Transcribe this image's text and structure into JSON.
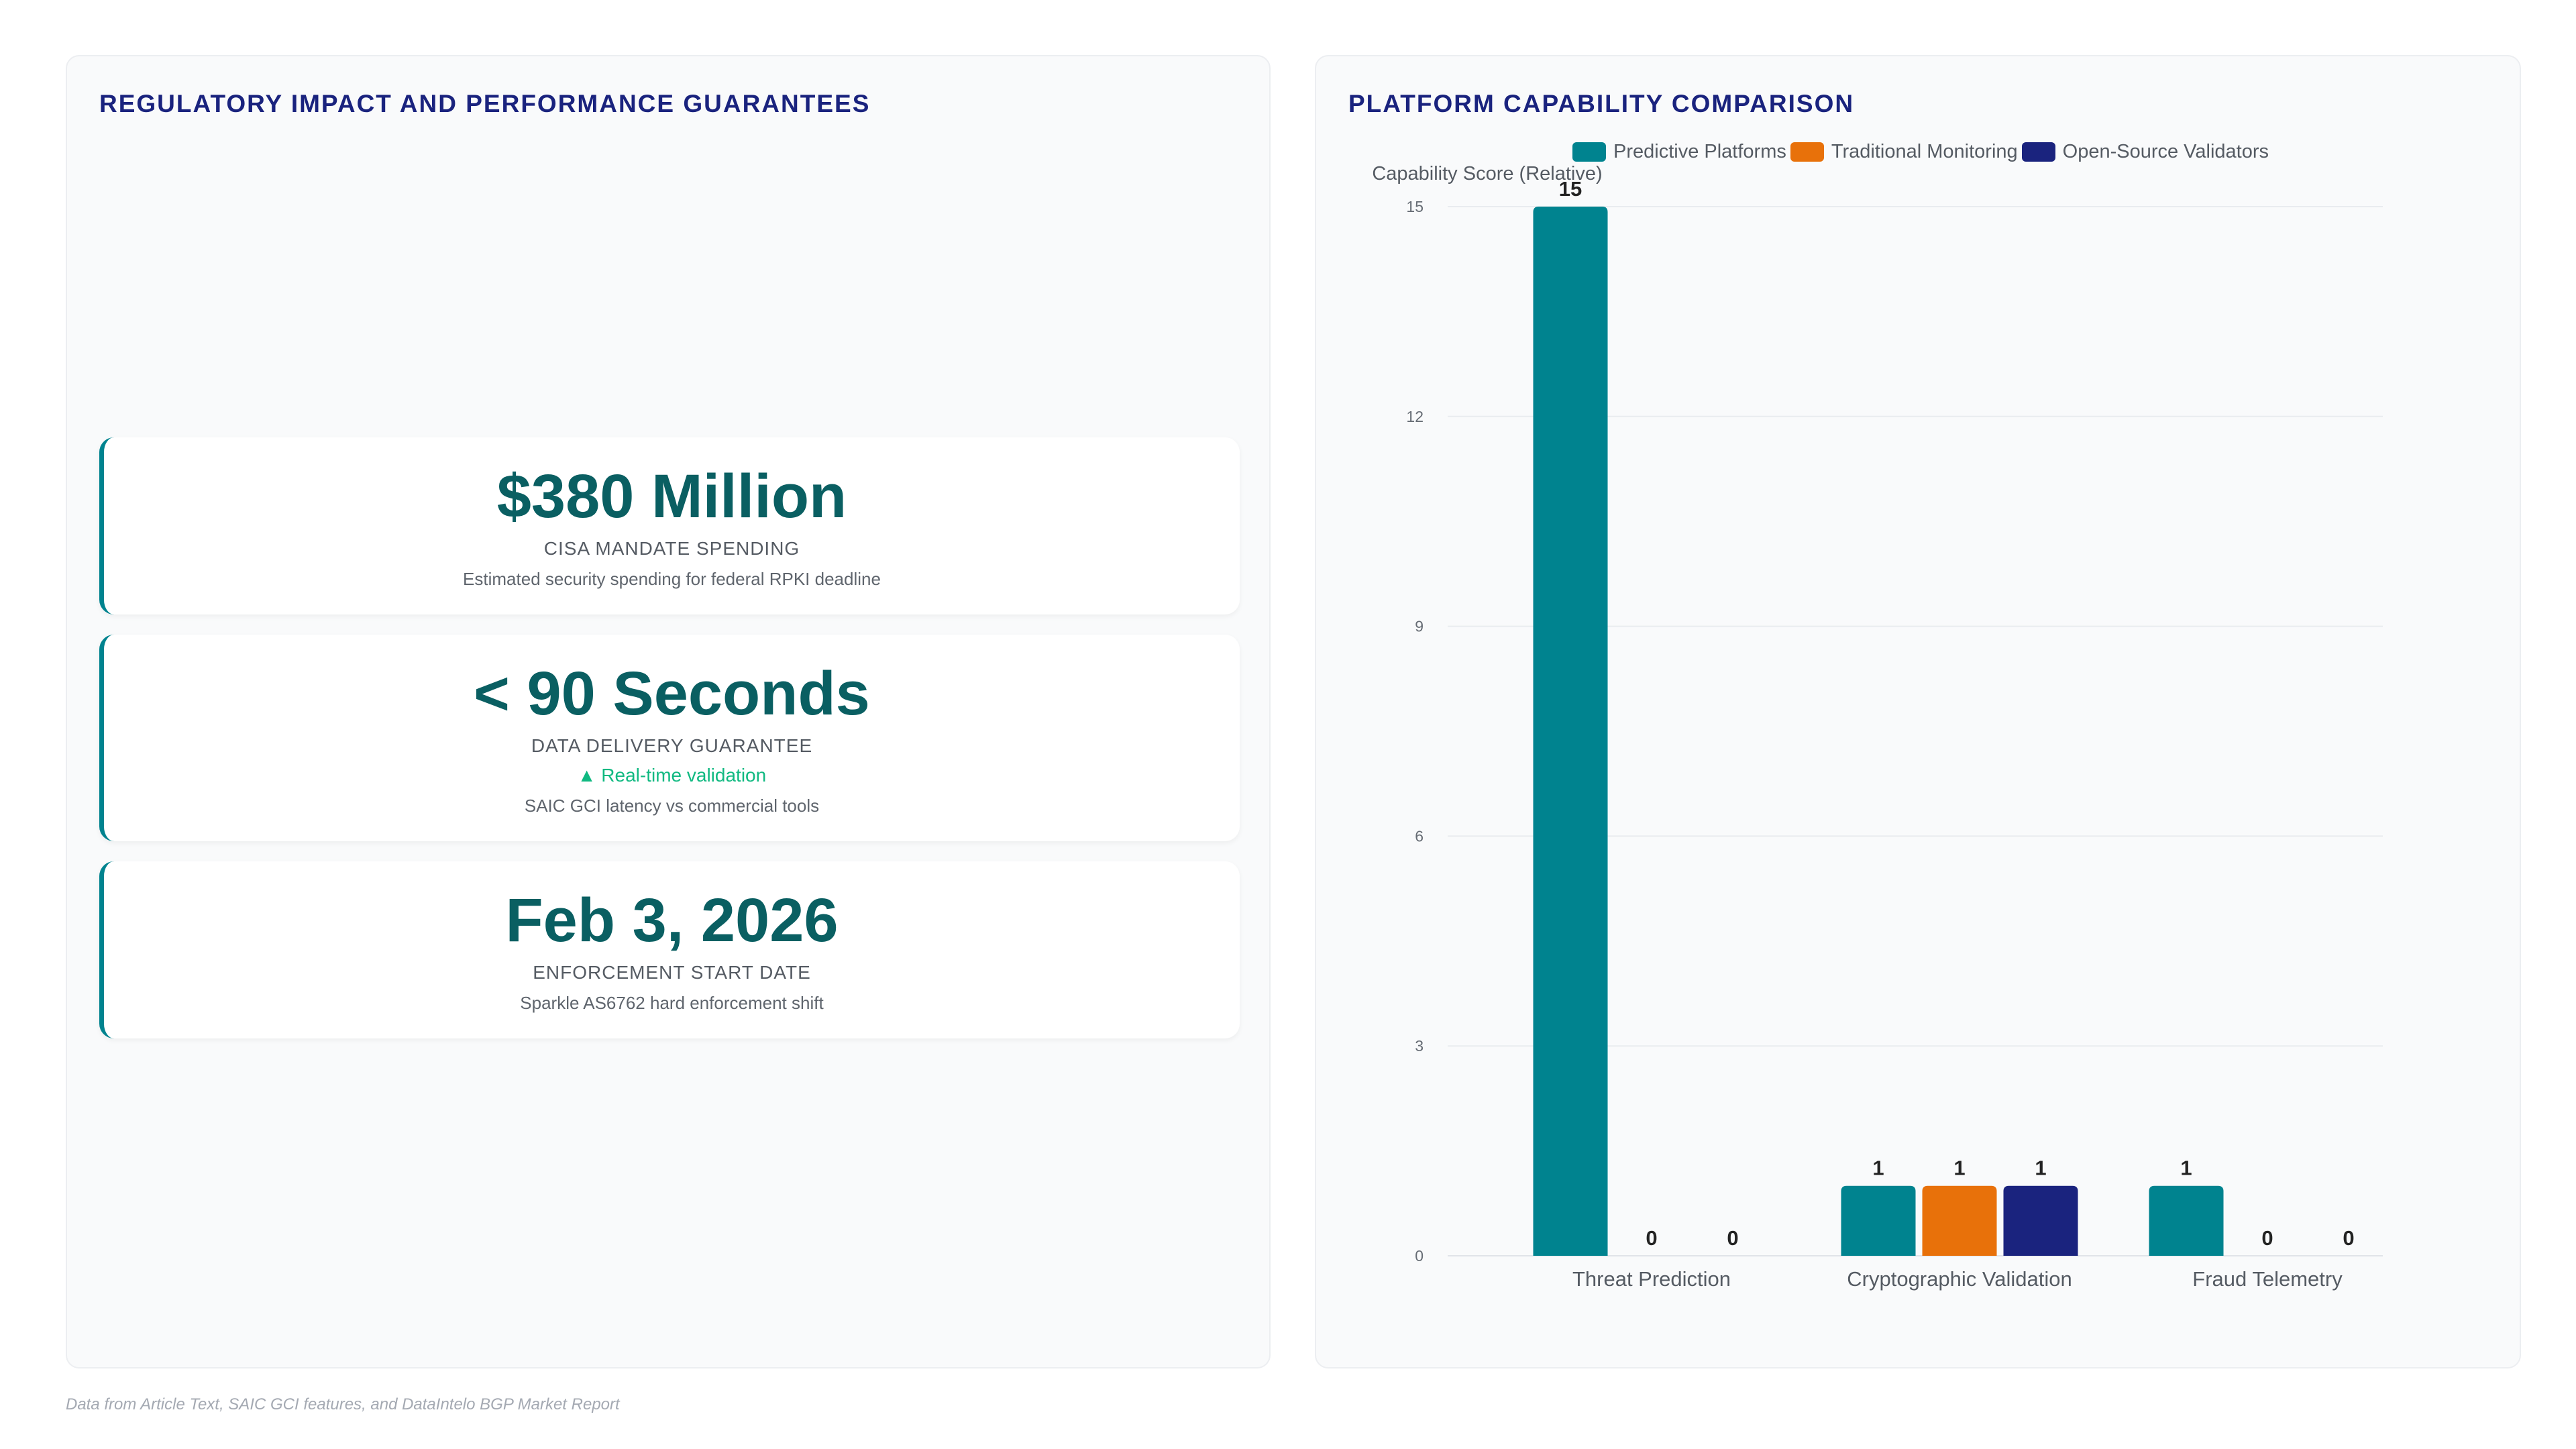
{
  "left_panel": {
    "title": "REGULATORY IMPACT AND PERFORMANCE GUARANTEES",
    "cards": [
      {
        "value": "$380 Million",
        "label": "CISA MANDATE SPENDING",
        "trend": "",
        "description": "Estimated security spending for federal RPKI deadline"
      },
      {
        "value": "< 90 Seconds",
        "label": "DATA DELIVERY GUARANTEE",
        "trend": "▲ Real-time validation",
        "description": "SAIC GCI latency vs commercial tools"
      },
      {
        "value": "Feb 3, 2026",
        "label": "ENFORCEMENT START DATE",
        "trend": "",
        "description": "Sparkle AS6762 hard enforcement shift"
      }
    ]
  },
  "right_panel": {
    "title": "PLATFORM CAPABILITY COMPARISON"
  },
  "footer": "Data from Article Text, SAIC GCI features, and DataIntelo BGP Market Report",
  "chart_data": {
    "type": "bar",
    "title": "PLATFORM CAPABILITY COMPARISON",
    "categories": [
      "Threat Prediction",
      "Cryptographic Validation",
      "Fraud Telemetry"
    ],
    "series": [
      {
        "name": "Predictive Platforms",
        "values": [
          15,
          1,
          1
        ],
        "color": "#00838f"
      },
      {
        "name": "Traditional Monitoring",
        "values": [
          0,
          1,
          0
        ],
        "color": "#e8710a"
      },
      {
        "name": "Open-Source Validators",
        "values": [
          0,
          1,
          0
        ],
        "color": "#1a237e"
      }
    ],
    "ylabel": "Capability Score (Relative)",
    "xlabel": "",
    "ylim": [
      0,
      15
    ],
    "yticks": [
      0,
      3,
      6,
      9,
      12,
      15
    ],
    "grid": true,
    "legend": "top",
    "data_labels": true
  }
}
